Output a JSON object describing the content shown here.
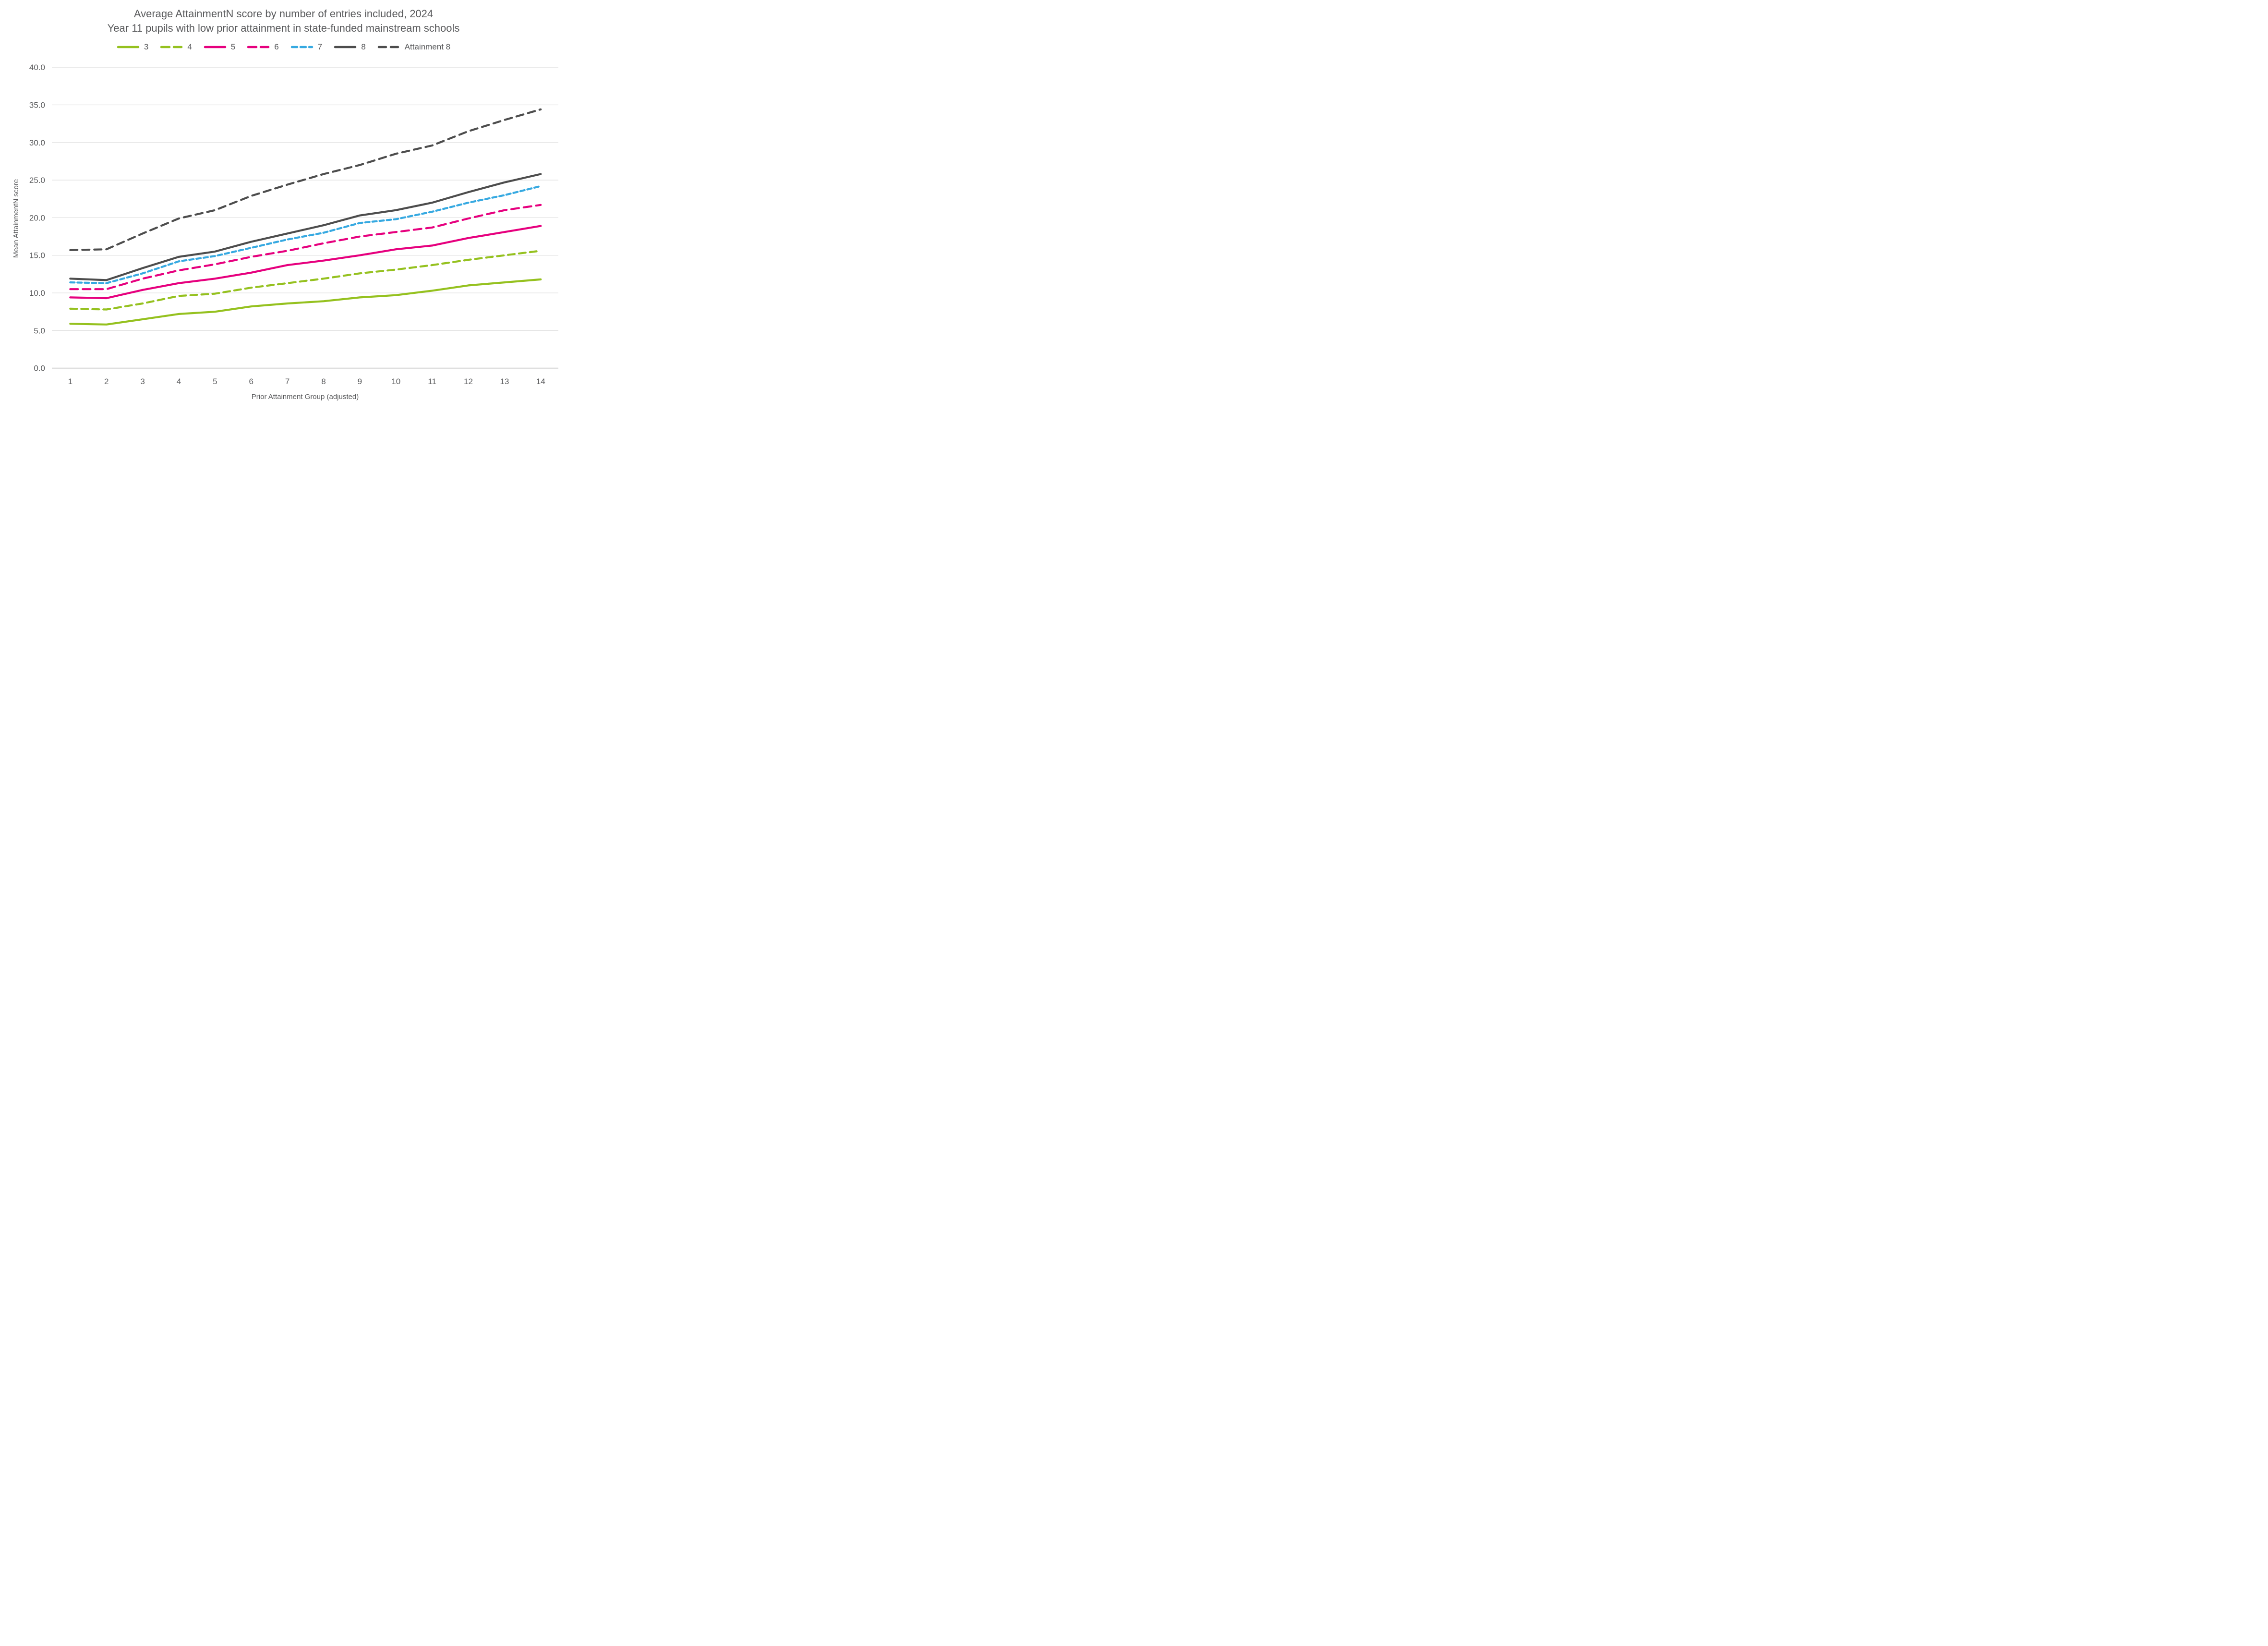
{
  "chart_data": {
    "type": "line",
    "title": "Average AttainmentN score by number of entries included, 2024",
    "subtitle": "Year 11 pupils with low prior attainment in state-funded mainstream schools",
    "xlabel": "Prior Attainment Group (adjusted)",
    "ylabel": "Mean AttainmentN score",
    "x": [
      1,
      2,
      3,
      4,
      5,
      6,
      7,
      8,
      9,
      10,
      11,
      12,
      13,
      14
    ],
    "xticks": [
      "1",
      "2",
      "3",
      "4",
      "5",
      "6",
      "7",
      "8",
      "9",
      "10",
      "11",
      "12",
      "13",
      "14"
    ],
    "yticks": [
      "0.0",
      "5.0",
      "10.0",
      "15.0",
      "20.0",
      "25.0",
      "30.0",
      "35.0",
      "40.0"
    ],
    "ylim": [
      0,
      40
    ],
    "ytick_step": 5,
    "grid": "horizontal",
    "legend_position": "top",
    "series": [
      {
        "name": "3",
        "color": "#95C11F",
        "style": "solid",
        "values": [
          5.9,
          5.8,
          6.5,
          7.2,
          7.5,
          8.2,
          8.6,
          8.9,
          9.4,
          9.7,
          10.3,
          11.0,
          11.4,
          11.8
        ]
      },
      {
        "name": "4",
        "color": "#95C11F",
        "style": "dashed",
        "values": [
          7.9,
          7.8,
          8.6,
          9.6,
          9.9,
          10.7,
          11.3,
          11.9,
          12.6,
          13.1,
          13.7,
          14.4,
          15.0,
          15.6
        ]
      },
      {
        "name": "5",
        "color": "#E6007E",
        "style": "solid",
        "values": [
          9.4,
          9.3,
          10.4,
          11.3,
          11.9,
          12.7,
          13.7,
          14.3,
          15.0,
          15.8,
          16.3,
          17.3,
          18.1,
          18.9
        ]
      },
      {
        "name": "6",
        "color": "#E6007E",
        "style": "dashed",
        "values": [
          10.5,
          10.5,
          11.9,
          13.0,
          13.8,
          14.8,
          15.6,
          16.6,
          17.5,
          18.1,
          18.7,
          19.9,
          21.0,
          21.7
        ]
      },
      {
        "name": "7",
        "color": "#36A9E1",
        "style": "dashed",
        "values": [
          11.4,
          11.3,
          12.6,
          14.2,
          14.9,
          16.0,
          17.1,
          18.0,
          19.3,
          19.8,
          20.8,
          22.0,
          23.0,
          24.2
        ]
      },
      {
        "name": "8",
        "color": "#4D4D4D",
        "style": "solid",
        "values": [
          11.9,
          11.7,
          13.3,
          14.8,
          15.5,
          16.8,
          17.9,
          19.0,
          20.3,
          21.0,
          22.0,
          23.4,
          24.7,
          25.8
        ]
      },
      {
        "name": "Attainment 8",
        "color": "#4D4D4D",
        "style": "dashed",
        "values": [
          15.7,
          15.8,
          17.9,
          19.9,
          21.0,
          22.9,
          24.4,
          25.8,
          27.0,
          28.5,
          29.6,
          31.5,
          33.0,
          34.4
        ]
      }
    ],
    "colors": {
      "green": "#95C11F",
      "magenta": "#E6007E",
      "blue": "#36A9E1",
      "dark_grey": "#4D4D4D",
      "text_grey": "#58595B",
      "gridline": "#E2E2E2",
      "zero_line": "#CDCDCD"
    }
  }
}
